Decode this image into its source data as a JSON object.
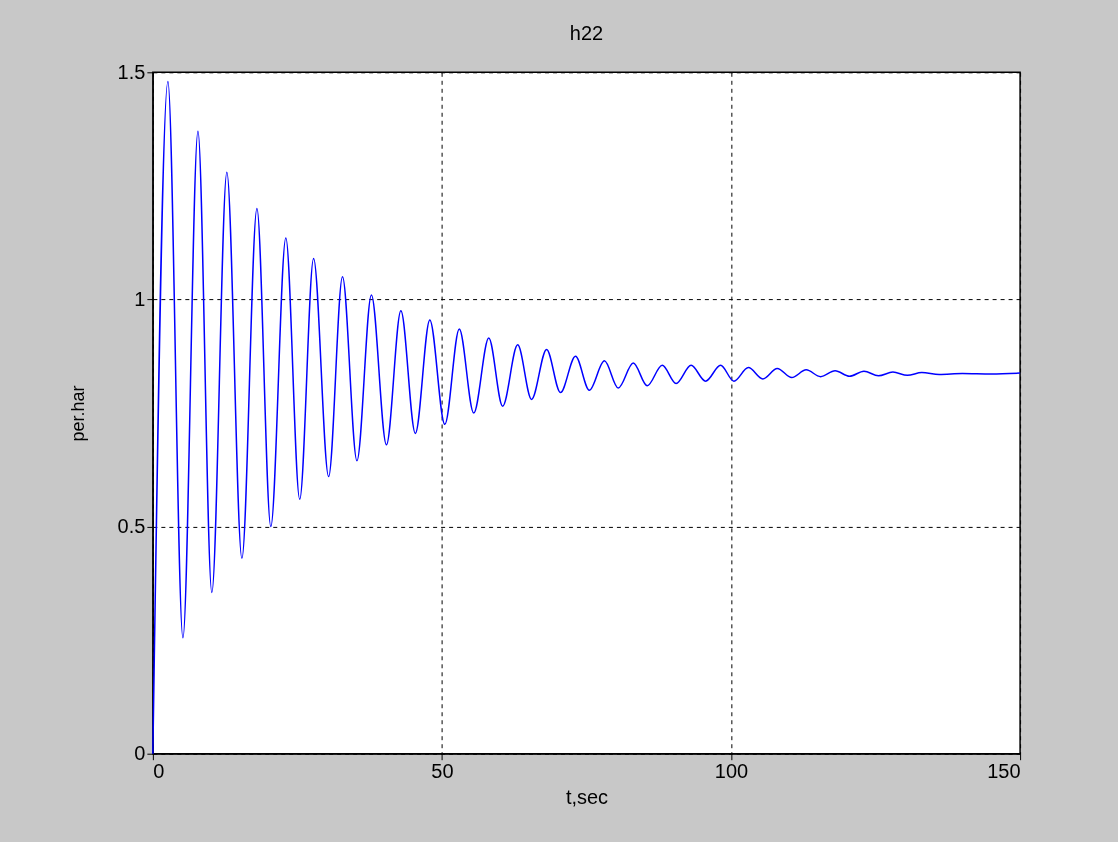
{
  "chart_data": {
    "type": "line",
    "title": "h22",
    "xlabel": "t,sec",
    "ylabel": "per.har",
    "xlim": [
      0,
      150
    ],
    "ylim": [
      0,
      1.5
    ],
    "xticks": [
      0,
      50,
      100,
      150
    ],
    "yticks": [
      0,
      0.5,
      1,
      1.5
    ],
    "grid": true,
    "line_style": "solid",
    "marker": "none",
    "series": [
      {
        "color": "#0000ff",
        "x": [
          0,
          2.6,
          5.2,
          7.8,
          10.2,
          12.8,
          15.4,
          18.0,
          20.4,
          23.0,
          25.4,
          27.8,
          30.4,
          32.8,
          35.3,
          37.8,
          40.4,
          42.9,
          45.4,
          47.9,
          50.5,
          53.0,
          55.5,
          58.1,
          60.5,
          63.1,
          65.5,
          68.1,
          70.5,
          73.1,
          75.5,
          78.1,
          80.5,
          83.1,
          85.5,
          88.1,
          90.5,
          93.1,
          95.6,
          98.2,
          100.5,
          103.0,
          105.5,
          108.0,
          110.5,
          113.0,
          115.5,
          118.0,
          120.5,
          123.0,
          125.5,
          128.0,
          130.5,
          133.0,
          136.0,
          140,
          145,
          150
        ],
        "values": [
          0,
          1.48,
          0.255,
          1.37,
          0.355,
          1.28,
          0.43,
          1.2,
          0.5,
          1.135,
          0.56,
          1.09,
          0.61,
          1.05,
          0.645,
          1.01,
          0.68,
          0.975,
          0.705,
          0.955,
          0.725,
          0.935,
          0.75,
          0.915,
          0.765,
          0.9,
          0.78,
          0.89,
          0.795,
          0.875,
          0.8,
          0.865,
          0.805,
          0.86,
          0.81,
          0.855,
          0.815,
          0.855,
          0.82,
          0.855,
          0.82,
          0.85,
          0.825,
          0.848,
          0.828,
          0.845,
          0.83,
          0.843,
          0.831,
          0.842,
          0.832,
          0.84,
          0.833,
          0.839,
          0.835,
          0.837,
          0.836,
          0.838
        ]
      }
    ]
  }
}
